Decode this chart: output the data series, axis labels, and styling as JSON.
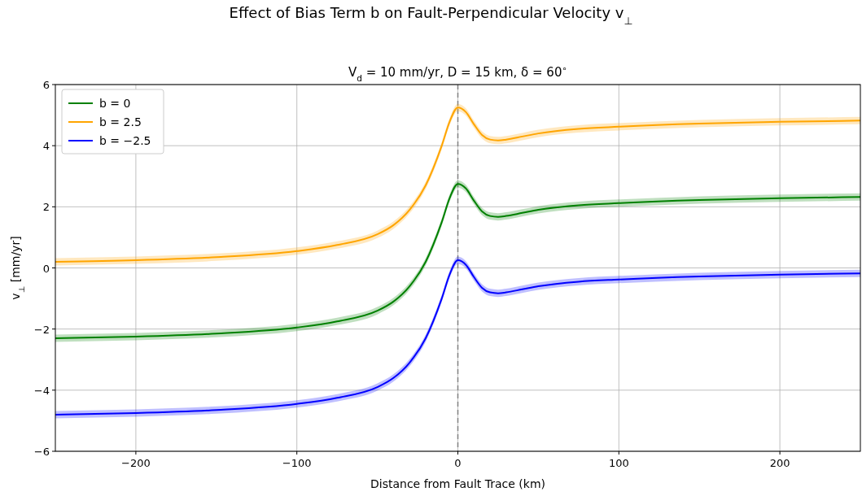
{
  "chart_data": {
    "type": "line",
    "title": "Effect of Bias Term b on Fault-Perpendicular Velocity v$_{⊥}$",
    "subtitle": "V$_{d}$ = 10 mm/yr, D = 15 km, δ = 60$^{∘}$",
    "xlabel": "Distance from Fault Trace (km)",
    "ylabel": "v$_{⊥}$ [mm/yr]",
    "x": [
      -250,
      -200,
      -150,
      -100,
      -75,
      -50,
      -40,
      -30,
      -20,
      -10,
      -5,
      0,
      5,
      10,
      15,
      20,
      25,
      30,
      40,
      50,
      75,
      100,
      150,
      200,
      250
    ],
    "series": [
      {
        "name": "b = 0",
        "color": "#008000",
        "values": [
          -2.3,
          -2.25,
          -2.15,
          -1.95,
          -1.75,
          -1.4,
          -1.1,
          -0.6,
          0.2,
          1.5,
          2.3,
          2.75,
          2.6,
          2.2,
          1.85,
          1.7,
          1.67,
          1.7,
          1.8,
          1.9,
          2.05,
          2.12,
          2.22,
          2.28,
          2.32
        ],
        "lower": [
          -2.42,
          -2.37,
          -2.27,
          -2.07,
          -1.87,
          -1.52,
          -1.22,
          -0.72,
          0.08,
          1.38,
          2.18,
          2.63,
          2.48,
          2.08,
          1.73,
          1.58,
          1.55,
          1.58,
          1.68,
          1.78,
          1.93,
          2.0,
          2.1,
          2.16,
          2.2
        ],
        "upper": [
          -2.18,
          -2.13,
          -2.03,
          -1.83,
          -1.63,
          -1.28,
          -0.98,
          -0.48,
          0.32,
          1.62,
          2.42,
          2.87,
          2.72,
          2.32,
          1.97,
          1.82,
          1.79,
          1.82,
          1.92,
          2.02,
          2.17,
          2.24,
          2.34,
          2.4,
          2.44
        ]
      },
      {
        "name": "b = 2.5",
        "color": "#ffa500",
        "values": [
          0.2,
          0.25,
          0.35,
          0.55,
          0.75,
          1.1,
          1.4,
          1.9,
          2.7,
          4.0,
          4.8,
          5.25,
          5.1,
          4.7,
          4.35,
          4.2,
          4.17,
          4.2,
          4.3,
          4.4,
          4.55,
          4.62,
          4.72,
          4.78,
          4.82
        ],
        "lower": [
          0.08,
          0.13,
          0.23,
          0.43,
          0.63,
          0.98,
          1.28,
          1.78,
          2.58,
          3.88,
          4.68,
          5.13,
          4.98,
          4.58,
          4.23,
          4.08,
          4.05,
          4.08,
          4.18,
          4.28,
          4.43,
          4.5,
          4.6,
          4.66,
          4.7
        ],
        "upper": [
          0.32,
          0.37,
          0.47,
          0.67,
          0.87,
          1.22,
          1.52,
          2.02,
          2.82,
          4.12,
          4.92,
          5.37,
          5.22,
          4.82,
          4.47,
          4.32,
          4.29,
          4.32,
          4.42,
          4.52,
          4.67,
          4.74,
          4.84,
          4.9,
          4.94
        ]
      },
      {
        "name": "b = −2.5",
        "color": "#0000ff",
        "values": [
          -4.8,
          -4.75,
          -4.65,
          -4.45,
          -4.25,
          -3.9,
          -3.6,
          -3.1,
          -2.3,
          -1.0,
          -0.2,
          0.25,
          0.1,
          -0.3,
          -0.65,
          -0.8,
          -0.83,
          -0.8,
          -0.7,
          -0.6,
          -0.45,
          -0.38,
          -0.28,
          -0.22,
          -0.18
        ],
        "lower": [
          -4.92,
          -4.87,
          -4.77,
          -4.57,
          -4.37,
          -4.02,
          -3.72,
          -3.22,
          -2.42,
          -1.12,
          -0.32,
          0.13,
          -0.02,
          -0.42,
          -0.77,
          -0.92,
          -0.95,
          -0.92,
          -0.82,
          -0.72,
          -0.57,
          -0.5,
          -0.4,
          -0.34,
          -0.3
        ],
        "upper": [
          -4.68,
          -4.63,
          -4.53,
          -4.33,
          -4.13,
          -3.78,
          -3.48,
          -2.98,
          -2.18,
          -0.88,
          -0.08,
          0.37,
          0.22,
          -0.18,
          -0.53,
          -0.68,
          -0.71,
          -0.68,
          -0.58,
          -0.48,
          -0.33,
          -0.26,
          -0.16,
          -0.1,
          -0.06
        ]
      }
    ],
    "xlim": [
      -250,
      250
    ],
    "xticks": [
      {
        "value": -200,
        "label": "−200"
      },
      {
        "value": -100,
        "label": "−100"
      },
      0,
      100,
      200
    ],
    "ylim": [
      -6,
      6
    ],
    "yticks": [
      {
        "value": -6,
        "label": "−6"
      },
      {
        "value": -4,
        "label": "−4"
      },
      {
        "value": -2,
        "label": "−2"
      },
      0,
      2,
      4,
      6
    ],
    "ref_lines": [
      {
        "axis": "x",
        "value": 0,
        "color": "#808080",
        "line_style": "dashed"
      }
    ],
    "grid": true,
    "legend": "top left",
    "line_style": "solid",
    "marker": "none"
  }
}
